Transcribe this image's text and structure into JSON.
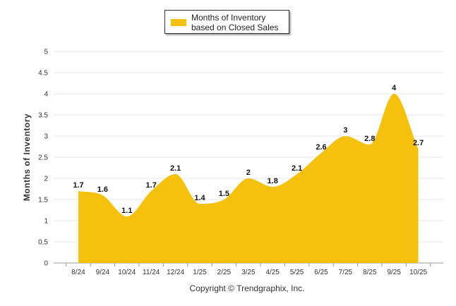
{
  "chart_data": {
    "type": "area",
    "categories": [
      "8/24",
      "9/24",
      "10/24",
      "11/24",
      "12/24",
      "1/25",
      "2/25",
      "3/25",
      "4/25",
      "5/25",
      "6/25",
      "7/25",
      "8/25",
      "9/25",
      "10/25"
    ],
    "series": [
      {
        "name": "Months of Inventory based on Closed Sales",
        "values": [
          1.7,
          1.6,
          1.1,
          1.7,
          2.1,
          1.4,
          1.5,
          2,
          1.8,
          2.1,
          2.6,
          3,
          2.8,
          4,
          2.7
        ],
        "color": "#F6C10C"
      }
    ],
    "data_labels": [
      "1.7",
      "1.6",
      "1.1",
      "1.7",
      "2.1",
      "1.4",
      "1.5",
      "2",
      "1.8",
      "2.1",
      "2.6",
      "3",
      "2.8",
      "4",
      "2.7"
    ],
    "ylabel": "Months of Inventory",
    "xlabel": "",
    "ylim": [
      0,
      5
    ],
    "yticks": [
      "0",
      "0.5",
      "1",
      "1.5",
      "2",
      "2.5",
      "3",
      "3.5",
      "4",
      "4.5",
      "5"
    ],
    "grid": true,
    "legend_position": "top-center",
    "gridline_color": "#e4e4e4"
  },
  "credit": "Copyright © Trendgraphix, Inc."
}
